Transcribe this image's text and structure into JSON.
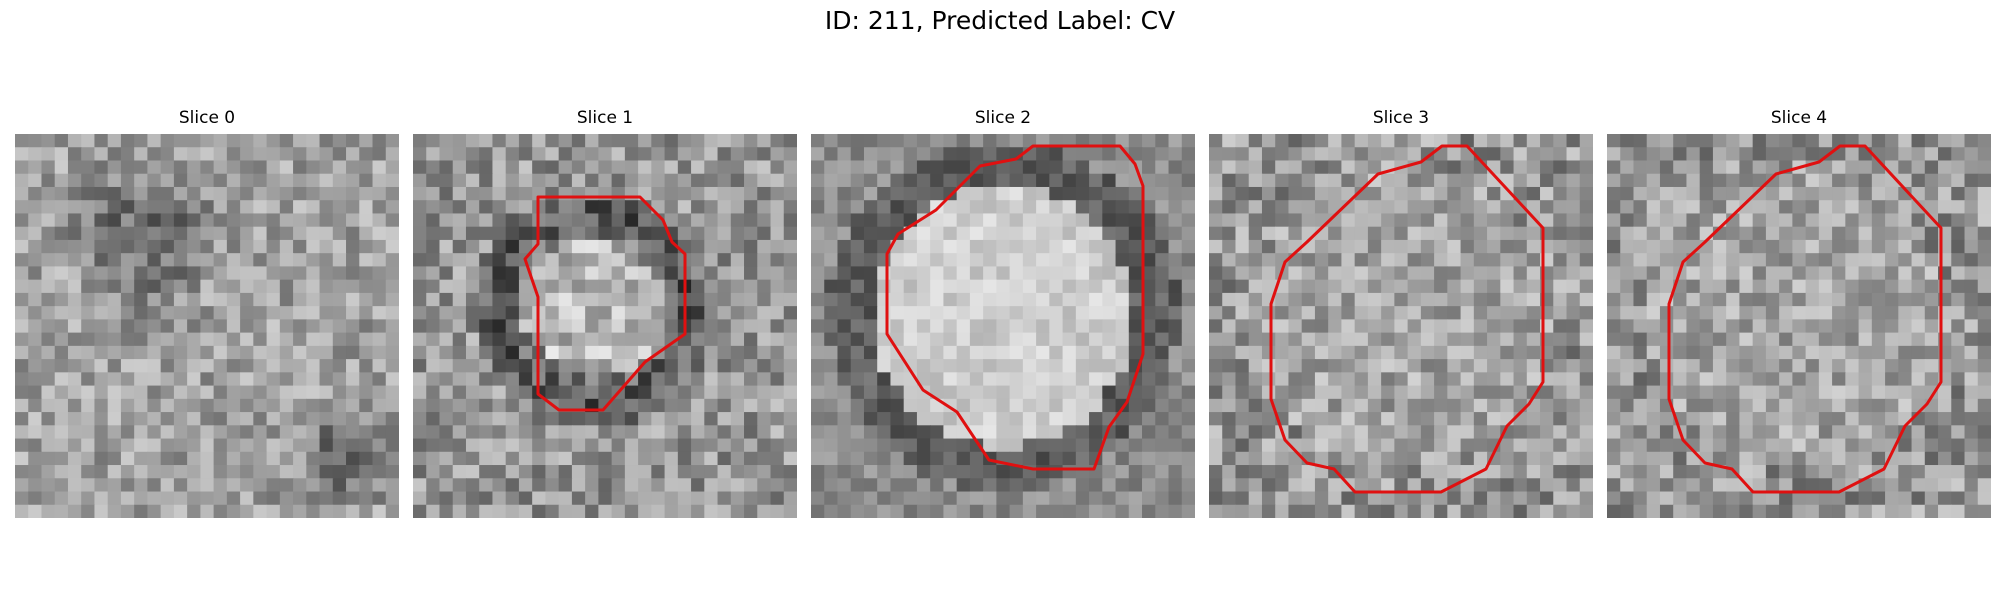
{
  "figure": {
    "title": "ID: 211, Predicted Label: CV"
  },
  "outline_color": "#e01010",
  "panels": [
    {
      "title": "Slice 0",
      "outline": false,
      "seed": 11
    },
    {
      "title": "Slice 1",
      "outline": true,
      "seed": 23
    },
    {
      "title": "Slice 2",
      "outline": true,
      "seed": 37
    },
    {
      "title": "Slice 3",
      "outline": true,
      "seed": 41
    },
    {
      "title": "Slice 4",
      "outline": true,
      "seed": 53
    }
  ]
}
